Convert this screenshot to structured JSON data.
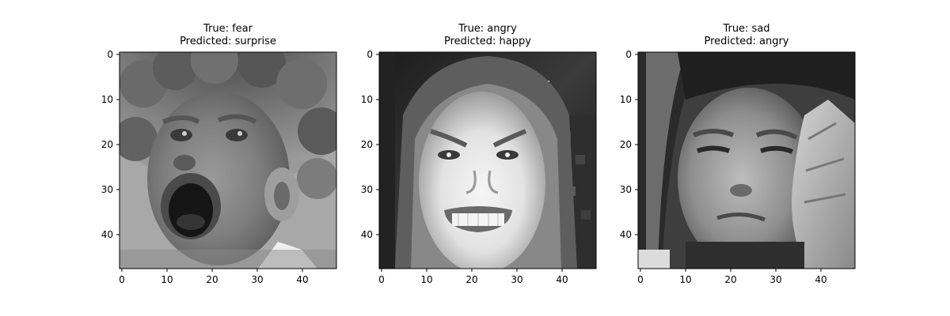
{
  "figure": {
    "panels": [
      {
        "title_true": "True: fear",
        "title_pred": "Predicted: surprise",
        "x_ticks": [
          "0",
          "10",
          "20",
          "30",
          "40"
        ],
        "y_ticks": [
          "0",
          "10",
          "20",
          "30",
          "40"
        ],
        "image_size": [
          48,
          48
        ]
      },
      {
        "title_true": "True: angry",
        "title_pred": "Predicted: happy",
        "x_ticks": [
          "0",
          "10",
          "20",
          "30",
          "40"
        ],
        "y_ticks": [
          "0",
          "10",
          "20",
          "30",
          "40"
        ],
        "image_size": [
          48,
          48
        ]
      },
      {
        "title_true": "True: sad",
        "title_pred": "Predicted: angry",
        "x_ticks": [
          "0",
          "10",
          "20",
          "30",
          "40"
        ],
        "y_ticks": [
          "0",
          "10",
          "20",
          "30",
          "40"
        ],
        "image_size": [
          48,
          48
        ]
      }
    ]
  }
}
